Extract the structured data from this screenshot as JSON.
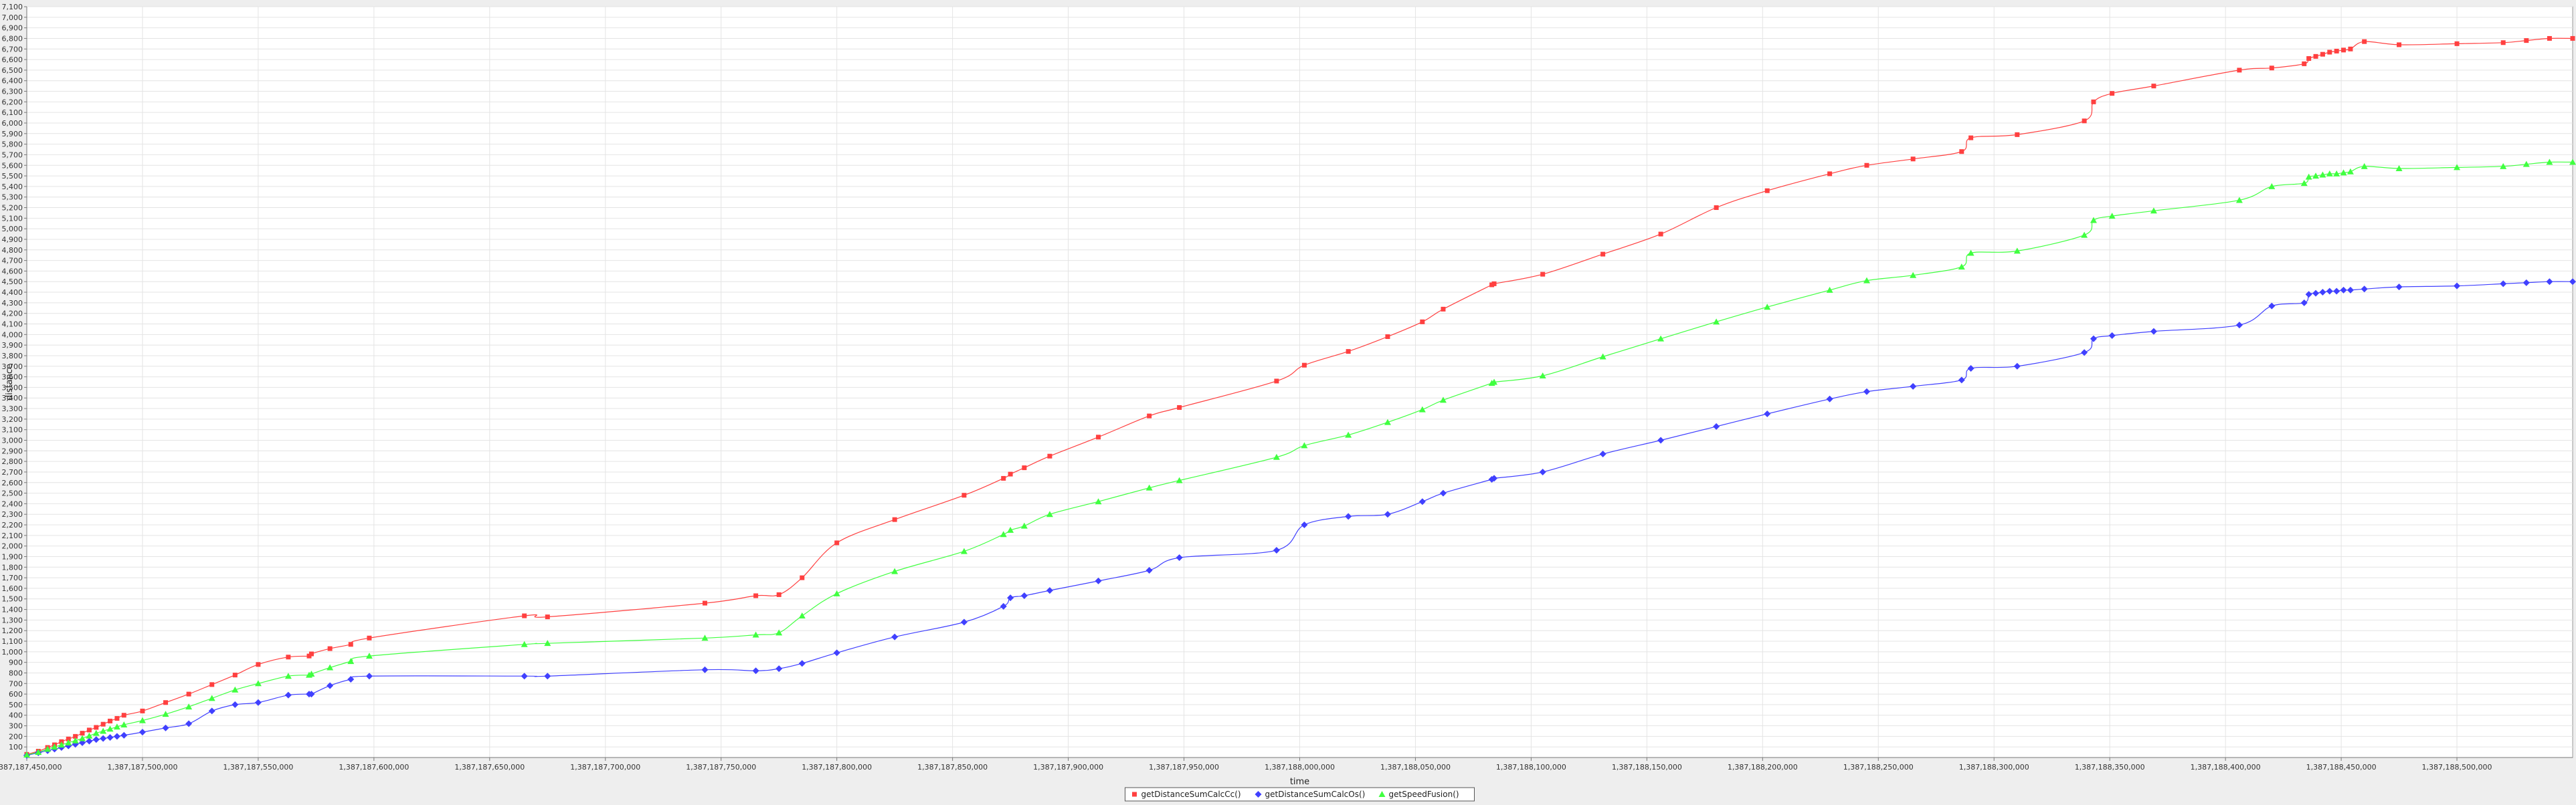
{
  "chart_data": {
    "type": "line",
    "xlabel": "time",
    "ylabel": "distance",
    "xlim": [
      1387187450000,
      1387188550000
    ],
    "ylim": [
      0,
      7100
    ],
    "x_ticks": [
      1387187450000,
      1387187500000,
      1387187550000,
      1387187600000,
      1387187650000,
      1387187700000,
      1387187750000,
      1387187800000,
      1387187850000,
      1387187900000,
      1387187950000,
      1387188000000,
      1387188050000,
      1387188100000,
      1387188150000,
      1387188200000,
      1387188250000,
      1387188300000,
      1387188350000,
      1387188400000,
      1387188450000,
      1387188500000
    ],
    "x_tick_labels": [
      "1,387,187,450,000",
      "1,387,187,500,000",
      "1,387,187,550,000",
      "1,387,187,600,000",
      "1,387,187,650,000",
      "1,387,187,700,000",
      "1,387,187,750,000",
      "1,387,187,800,000",
      "1,387,187,850,000",
      "1,387,187,900,000",
      "1,387,187,950,000",
      "1,387,188,000,000",
      "1,387,188,050,000",
      "1,387,188,100,000",
      "1,387,188,150,000",
      "1,387,188,200,000",
      "1,387,188,250,000",
      "1,387,188,300,000",
      "1,387,188,350,000",
      "1,387,188,400,000",
      "1,387,188,450,000",
      "1,387,188,500,000"
    ],
    "y_ticks": [
      100,
      200,
      300,
      400,
      500,
      600,
      700,
      800,
      900,
      1000,
      1100,
      1200,
      1300,
      1400,
      1500,
      1600,
      1700,
      1800,
      1900,
      2000,
      2100,
      2200,
      2300,
      2400,
      2500,
      2600,
      2700,
      2800,
      2900,
      3000,
      3100,
      3200,
      3300,
      3400,
      3500,
      3600,
      3700,
      3800,
      3900,
      4000,
      4100,
      4200,
      4300,
      4400,
      4500,
      4600,
      4700,
      4800,
      4900,
      5000,
      5100,
      5200,
      5300,
      5400,
      5500,
      5600,
      5700,
      5800,
      5900,
      6000,
      6100,
      6200,
      6300,
      6400,
      6500,
      6600,
      6700,
      6800,
      6900,
      7000,
      7100
    ],
    "y_tick_labels": [
      "100",
      "200",
      "300",
      "400",
      "500",
      "600",
      "700",
      "800",
      "900",
      "1,000",
      "1,100",
      "1,200",
      "1,300",
      "1,400",
      "1,500",
      "1,600",
      "1,700",
      "1,800",
      "1,900",
      "2,000",
      "2,100",
      "2,200",
      "2,300",
      "2,400",
      "2,500",
      "2,600",
      "2,700",
      "2,800",
      "2,900",
      "3,000",
      "3,100",
      "3,200",
      "3,300",
      "3,400",
      "3,500",
      "3,600",
      "3,700",
      "3,800",
      "3,900",
      "4,000",
      "4,100",
      "4,200",
      "4,300",
      "4,400",
      "4,500",
      "4,600",
      "4,700",
      "4,800",
      "4,900",
      "5,000",
      "5,100",
      "5,200",
      "5,300",
      "5,400",
      "5,500",
      "5,600",
      "5,700",
      "5,800",
      "5,900",
      "6,000",
      "6,100",
      "6,200",
      "6,300",
      "6,400",
      "6,500",
      "6,600",
      "6,700",
      "6,800",
      "6,900",
      "7,000",
      "7,100"
    ],
    "grid": true,
    "legend_position": "bottom-center",
    "series": [
      {
        "name": "getDistanceSumCalcCc()",
        "color": "#ff4040",
        "marker": "square",
        "x": [
          1387187450000,
          1387187455000,
          1387187459000,
          1387187462000,
          1387187465000,
          1387187468000,
          1387187471000,
          1387187474000,
          1387187477000,
          1387187480000,
          1387187483000,
          1387187486000,
          1387187489000,
          1387187492000,
          1387187500000,
          1387187510000,
          1387187520000,
          1387187530000,
          1387187540000,
          1387187550000,
          1387187563000,
          1387187572000,
          1387187573000,
          1387187581000,
          1387187590000,
          1387187598000,
          1387187665000,
          1387187675000,
          1387187743000,
          1387187765000,
          1387187775000,
          1387187785000,
          1387187800000,
          1387187825000,
          1387187855000,
          1387187872000,
          1387187875000,
          1387187881000,
          1387187892000,
          1387187913000,
          1387187935000,
          1387187948000,
          1387187990000,
          1387188002000,
          1387188021000,
          1387188038000,
          1387188053000,
          1387188062000,
          1387188083000,
          1387188084000,
          1387188105000,
          1387188131000,
          1387188156000,
          1387188180000,
          1387188202000,
          1387188229000,
          1387188245000,
          1387188265000,
          1387188286000,
          1387188290000,
          1387188310000,
          1387188339000,
          1387188343000,
          1387188351000,
          1387188369000,
          1387188406000,
          1387188420000,
          1387188434000,
          1387188436000,
          1387188439000,
          1387188442000,
          1387188445000,
          1387188448000,
          1387188451000,
          1387188454000,
          1387188460000,
          1387188475000,
          1387188500000,
          1387188520000,
          1387188530000,
          1387188540000,
          1387188550000
        ],
        "values": [
          30,
          60,
          95,
          120,
          150,
          175,
          200,
          230,
          260,
          285,
          315,
          345,
          370,
          400,
          440,
          520,
          600,
          690,
          780,
          880,
          950,
          960,
          980,
          1030,
          1070,
          1130,
          1340,
          1330,
          1460,
          1530,
          1540,
          1700,
          2030,
          2250,
          2480,
          2640,
          2680,
          2740,
          2850,
          3030,
          3230,
          3310,
          3560,
          3710,
          3840,
          3980,
          4120,
          4240,
          4470,
          4480,
          4570,
          4760,
          4950,
          5200,
          5360,
          5520,
          5600,
          5660,
          5730,
          5860,
          5890,
          6020,
          6200,
          6280,
          6350,
          6500,
          6520,
          6560,
          6610,
          6630,
          6650,
          6670,
          6680,
          6690,
          6700,
          6770,
          6740,
          6750,
          6760,
          6780,
          6800,
          6800
        ]
      },
      {
        "name": "getDistanceSumCalcOs()",
        "color": "#4040ff",
        "marker": "diamond",
        "x": [
          1387187450000,
          1387187455000,
          1387187459000,
          1387187462000,
          1387187465000,
          1387187468000,
          1387187471000,
          1387187474000,
          1387187477000,
          1387187480000,
          1387187483000,
          1387187486000,
          1387187489000,
          1387187492000,
          1387187500000,
          1387187510000,
          1387187520000,
          1387187530000,
          1387187540000,
          1387187550000,
          1387187563000,
          1387187572000,
          1387187573000,
          1387187581000,
          1387187590000,
          1387187598000,
          1387187665000,
          1387187675000,
          1387187743000,
          1387187765000,
          1387187775000,
          1387187785000,
          1387187800000,
          1387187825000,
          1387187855000,
          1387187872000,
          1387187875000,
          1387187881000,
          1387187892000,
          1387187913000,
          1387187935000,
          1387187948000,
          1387187990000,
          1387188002000,
          1387188021000,
          1387188038000,
          1387188053000,
          1387188062000,
          1387188083000,
          1387188084000,
          1387188105000,
          1387188131000,
          1387188156000,
          1387188180000,
          1387188202000,
          1387188229000,
          1387188245000,
          1387188265000,
          1387188286000,
          1387188290000,
          1387188310000,
          1387188339000,
          1387188343000,
          1387188351000,
          1387188369000,
          1387188406000,
          1387188420000,
          1387188434000,
          1387188436000,
          1387188439000,
          1387188442000,
          1387188445000,
          1387188448000,
          1387188451000,
          1387188454000,
          1387188460000,
          1387188475000,
          1387188500000,
          1387188520000,
          1387188530000,
          1387188540000,
          1387188550000
        ],
        "values": [
          20,
          45,
          65,
          80,
          95,
          110,
          125,
          140,
          155,
          170,
          180,
          190,
          200,
          210,
          240,
          280,
          320,
          440,
          500,
          520,
          590,
          600,
          600,
          680,
          740,
          770,
          770,
          770,
          830,
          820,
          840,
          890,
          990,
          1140,
          1280,
          1430,
          1510,
          1530,
          1580,
          1670,
          1770,
          1890,
          1960,
          2200,
          2280,
          2300,
          2420,
          2500,
          2630,
          2640,
          2700,
          2870,
          3000,
          3130,
          3250,
          3390,
          3460,
          3510,
          3570,
          3680,
          3700,
          3830,
          3960,
          3990,
          4030,
          4090,
          4270,
          4300,
          4380,
          4390,
          4400,
          4410,
          4410,
          4420,
          4420,
          4430,
          4450,
          4460,
          4480,
          4490,
          4500,
          4500
        ]
      },
      {
        "name": "getSpeedFusion()",
        "color": "#40ff40",
        "marker": "triangle",
        "x": [
          1387187450000,
          1387187455000,
          1387187459000,
          1387187462000,
          1387187465000,
          1387187468000,
          1387187471000,
          1387187474000,
          1387187477000,
          1387187480000,
          1387187483000,
          1387187486000,
          1387187489000,
          1387187492000,
          1387187500000,
          1387187510000,
          1387187520000,
          1387187530000,
          1387187540000,
          1387187550000,
          1387187563000,
          1387187572000,
          1387187573000,
          1387187581000,
          1387187590000,
          1387187598000,
          1387187665000,
          1387187675000,
          1387187743000,
          1387187765000,
          1387187775000,
          1387187785000,
          1387187800000,
          1387187825000,
          1387187855000,
          1387187872000,
          1387187875000,
          1387187881000,
          1387187892000,
          1387187913000,
          1387187935000,
          1387187948000,
          1387187990000,
          1387188002000,
          1387188021000,
          1387188038000,
          1387188053000,
          1387188062000,
          1387188083000,
          1387188084000,
          1387188105000,
          1387188131000,
          1387188156000,
          1387188180000,
          1387188202000,
          1387188229000,
          1387188245000,
          1387188265000,
          1387188286000,
          1387188290000,
          1387188310000,
          1387188339000,
          1387188343000,
          1387188351000,
          1387188369000,
          1387188406000,
          1387188420000,
          1387188434000,
          1387188436000,
          1387188439000,
          1387188442000,
          1387188445000,
          1387188448000,
          1387188451000,
          1387188454000,
          1387188460000,
          1387188475000,
          1387188500000,
          1387188520000,
          1387188530000,
          1387188540000,
          1387188550000
        ],
        "values": [
          25,
          50,
          80,
          100,
          120,
          140,
          160,
          180,
          205,
          230,
          250,
          270,
          290,
          310,
          350,
          410,
          480,
          560,
          640,
          700,
          770,
          780,
          790,
          850,
          910,
          960,
          1070,
          1080,
          1130,
          1160,
          1180,
          1340,
          1550,
          1760,
          1950,
          2110,
          2150,
          2190,
          2300,
          2420,
          2550,
          2620,
          2840,
          2950,
          3050,
          3170,
          3290,
          3380,
          3540,
          3550,
          3610,
          3790,
          3960,
          4120,
          4260,
          4420,
          4510,
          4560,
          4640,
          4770,
          4790,
          4940,
          5080,
          5120,
          5170,
          5270,
          5400,
          5430,
          5490,
          5500,
          5510,
          5520,
          5520,
          5530,
          5540,
          5590,
          5570,
          5580,
          5590,
          5610,
          5630,
          5630
        ]
      }
    ]
  }
}
